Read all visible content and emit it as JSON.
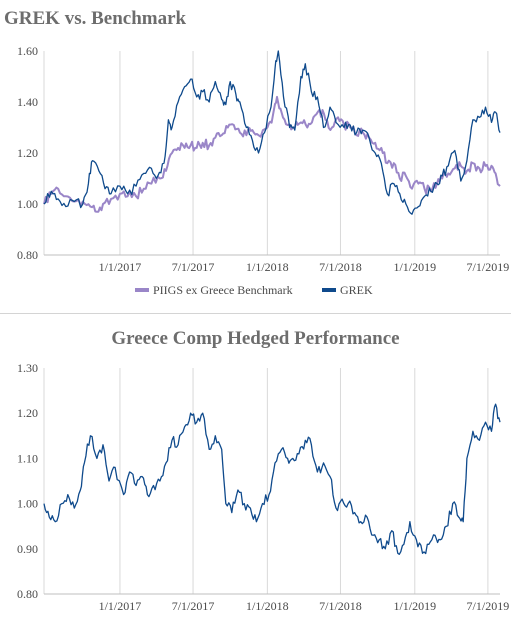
{
  "chart_data": [
    {
      "type": "line",
      "title": "GREK vs. Benchmark",
      "xlabel": "",
      "ylabel": "",
      "x_range": [
        "2016-06-27",
        "2019-07-31"
      ],
      "ylim": [
        0.8,
        1.6
      ],
      "yticks": [
        "0.80",
        "1.00",
        "1.20",
        "1.40",
        "1.60"
      ],
      "xticks": [
        {
          "date": "2017-01-01",
          "label": "1/1/2017"
        },
        {
          "date": "2017-07-01",
          "label": "7/1/2017"
        },
        {
          "date": "2018-01-01",
          "label": "1/1/2018"
        },
        {
          "date": "2018-07-01",
          "label": "7/1/2018"
        },
        {
          "date": "2019-01-01",
          "label": "1/1/2019"
        },
        {
          "date": "2019-07-01",
          "label": "7/1/2019"
        }
      ],
      "grid": "vertical",
      "legend": "bottom",
      "series": [
        {
          "name": "PIIGS ex Greece Benchmark",
          "color": "#9a86c8",
          "points": [
            [
              "2016-06-27",
              1.0
            ],
            [
              "2016-07-15",
              1.04
            ],
            [
              "2016-08-01",
              1.06
            ],
            [
              "2016-08-20",
              1.03
            ],
            [
              "2016-09-10",
              1.01
            ],
            [
              "2016-10-01",
              1.01
            ],
            [
              "2016-10-20",
              0.99
            ],
            [
              "2016-11-05",
              0.97
            ],
            [
              "2016-11-20",
              1.0
            ],
            [
              "2016-12-10",
              1.02
            ],
            [
              "2017-01-01",
              1.04
            ],
            [
              "2017-01-20",
              1.03
            ],
            [
              "2017-02-10",
              1.03
            ],
            [
              "2017-03-01",
              1.06
            ],
            [
              "2017-03-20",
              1.08
            ],
            [
              "2017-04-10",
              1.1
            ],
            [
              "2017-04-25",
              1.13
            ],
            [
              "2017-05-10",
              1.2
            ],
            [
              "2017-05-25",
              1.22
            ],
            [
              "2017-06-10",
              1.22
            ],
            [
              "2017-06-25",
              1.23
            ],
            [
              "2017-07-10",
              1.22
            ],
            [
              "2017-07-25",
              1.24
            ],
            [
              "2017-08-10",
              1.23
            ],
            [
              "2017-08-25",
              1.26
            ],
            [
              "2017-09-10",
              1.27
            ],
            [
              "2017-09-25",
              1.3
            ],
            [
              "2017-10-10",
              1.31
            ],
            [
              "2017-10-25",
              1.28
            ],
            [
              "2017-11-10",
              1.27
            ],
            [
              "2017-11-25",
              1.29
            ],
            [
              "2017-12-10",
              1.27
            ],
            [
              "2018-01-01",
              1.3
            ],
            [
              "2018-01-15",
              1.35
            ],
            [
              "2018-01-25",
              1.42
            ],
            [
              "2018-02-05",
              1.36
            ],
            [
              "2018-02-20",
              1.31
            ],
            [
              "2018-03-10",
              1.3
            ],
            [
              "2018-03-25",
              1.32
            ],
            [
              "2018-04-10",
              1.3
            ],
            [
              "2018-04-25",
              1.34
            ],
            [
              "2018-05-10",
              1.37
            ],
            [
              "2018-05-25",
              1.33
            ],
            [
              "2018-06-10",
              1.3
            ],
            [
              "2018-06-25",
              1.34
            ],
            [
              "2018-07-10",
              1.31
            ],
            [
              "2018-07-25",
              1.3
            ],
            [
              "2018-08-10",
              1.27
            ],
            [
              "2018-08-25",
              1.28
            ],
            [
              "2018-09-10",
              1.26
            ],
            [
              "2018-09-25",
              1.24
            ],
            [
              "2018-10-10",
              1.22
            ],
            [
              "2018-10-25",
              1.16
            ],
            [
              "2018-11-10",
              1.16
            ],
            [
              "2018-11-25",
              1.1
            ],
            [
              "2018-12-10",
              1.11
            ],
            [
              "2018-12-25",
              1.06
            ],
            [
              "2019-01-10",
              1.08
            ],
            [
              "2019-01-25",
              1.06
            ],
            [
              "2019-02-10",
              1.05
            ],
            [
              "2019-02-25",
              1.08
            ],
            [
              "2019-03-10",
              1.1
            ],
            [
              "2019-03-25",
              1.12
            ],
            [
              "2019-04-10",
              1.14
            ],
            [
              "2019-04-25",
              1.15
            ],
            [
              "2019-05-10",
              1.13
            ],
            [
              "2019-05-25",
              1.16
            ],
            [
              "2019-06-10",
              1.14
            ],
            [
              "2019-06-25",
              1.15
            ],
            [
              "2019-07-10",
              1.15
            ],
            [
              "2019-07-20",
              1.12
            ],
            [
              "2019-07-31",
              1.07
            ]
          ]
        },
        {
          "name": "GREK",
          "color": "#0f4a8c",
          "points": [
            [
              "2016-06-27",
              1.0
            ],
            [
              "2016-07-15",
              1.05
            ],
            [
              "2016-08-01",
              1.02
            ],
            [
              "2016-08-20",
              0.99
            ],
            [
              "2016-09-10",
              1.01
            ],
            [
              "2016-10-01",
              1.0
            ],
            [
              "2016-10-15",
              1.08
            ],
            [
              "2016-10-25",
              1.17
            ],
            [
              "2016-11-10",
              1.13
            ],
            [
              "2016-11-25",
              1.06
            ],
            [
              "2016-12-10",
              1.04
            ],
            [
              "2017-01-01",
              1.07
            ],
            [
              "2017-01-20",
              1.04
            ],
            [
              "2017-02-10",
              1.07
            ],
            [
              "2017-03-01",
              1.12
            ],
            [
              "2017-03-20",
              1.14
            ],
            [
              "2017-04-05",
              1.11
            ],
            [
              "2017-04-20",
              1.16
            ],
            [
              "2017-05-01",
              1.33
            ],
            [
              "2017-05-10",
              1.3
            ],
            [
              "2017-05-25",
              1.4
            ],
            [
              "2017-06-10",
              1.46
            ],
            [
              "2017-06-25",
              1.49
            ],
            [
              "2017-07-10",
              1.42
            ],
            [
              "2017-07-25",
              1.44
            ],
            [
              "2017-08-10",
              1.4
            ],
            [
              "2017-08-25",
              1.48
            ],
            [
              "2017-09-10",
              1.41
            ],
            [
              "2017-09-20",
              1.39
            ],
            [
              "2017-10-01",
              1.48
            ],
            [
              "2017-10-15",
              1.43
            ],
            [
              "2017-10-25",
              1.4
            ],
            [
              "2017-11-10",
              1.3
            ],
            [
              "2017-11-25",
              1.25
            ],
            [
              "2017-12-10",
              1.2
            ],
            [
              "2017-12-25",
              1.28
            ],
            [
              "2018-01-10",
              1.38
            ],
            [
              "2018-01-20",
              1.53
            ],
            [
              "2018-01-28",
              1.6
            ],
            [
              "2018-02-10",
              1.42
            ],
            [
              "2018-02-25",
              1.3
            ],
            [
              "2018-03-10",
              1.29
            ],
            [
              "2018-03-25",
              1.5
            ],
            [
              "2018-04-05",
              1.55
            ],
            [
              "2018-04-20",
              1.44
            ],
            [
              "2018-05-05",
              1.42
            ],
            [
              "2018-05-20",
              1.3
            ],
            [
              "2018-06-05",
              1.38
            ],
            [
              "2018-06-20",
              1.32
            ],
            [
              "2018-07-10",
              1.3
            ],
            [
              "2018-07-25",
              1.31
            ],
            [
              "2018-08-10",
              1.28
            ],
            [
              "2018-08-25",
              1.29
            ],
            [
              "2018-09-10",
              1.26
            ],
            [
              "2018-09-25",
              1.2
            ],
            [
              "2018-10-10",
              1.16
            ],
            [
              "2018-10-25",
              1.04
            ],
            [
              "2018-11-10",
              1.08
            ],
            [
              "2018-11-25",
              1.04
            ],
            [
              "2018-12-10",
              1.0
            ],
            [
              "2018-12-25",
              0.96
            ],
            [
              "2019-01-10",
              0.99
            ],
            [
              "2019-01-25",
              1.03
            ],
            [
              "2019-02-10",
              1.05
            ],
            [
              "2019-02-25",
              1.08
            ],
            [
              "2019-03-10",
              1.11
            ],
            [
              "2019-03-25",
              1.15
            ],
            [
              "2019-04-10",
              1.21
            ],
            [
              "2019-04-25",
              1.09
            ],
            [
              "2019-05-10",
              1.17
            ],
            [
              "2019-05-25",
              1.33
            ],
            [
              "2019-06-10",
              1.34
            ],
            [
              "2019-06-25",
              1.38
            ],
            [
              "2019-07-10",
              1.32
            ],
            [
              "2019-07-20",
              1.36
            ],
            [
              "2019-07-31",
              1.28
            ]
          ]
        }
      ]
    },
    {
      "type": "line",
      "title": "Greece Comp Hedged Performance",
      "xlabel": "",
      "ylabel": "",
      "x_range": [
        "2016-06-27",
        "2019-07-31"
      ],
      "ylim": [
        0.8,
        1.3
      ],
      "yticks": [
        "0.80",
        "0.90",
        "1.00",
        "1.10",
        "1.20",
        "1.30"
      ],
      "xticks": [
        {
          "date": "2017-01-01",
          "label": "1/1/2017"
        },
        {
          "date": "2017-07-01",
          "label": "7/1/2017"
        },
        {
          "date": "2018-01-01",
          "label": "1/1/2018"
        },
        {
          "date": "2018-07-01",
          "label": "7/1/2018"
        },
        {
          "date": "2019-01-01",
          "label": "1/1/2019"
        },
        {
          "date": "2019-07-01",
          "label": "7/1/2019"
        }
      ],
      "grid": "vertical",
      "legend": "none",
      "series": [
        {
          "color": "#0f4a8c",
          "points": [
            [
              "2016-06-27",
              1.0
            ],
            [
              "2016-07-10",
              0.97
            ],
            [
              "2016-07-25",
              0.96
            ],
            [
              "2016-08-10",
              1.0
            ],
            [
              "2016-08-25",
              1.02
            ],
            [
              "2016-09-10",
              0.99
            ],
            [
              "2016-09-25",
              1.03
            ],
            [
              "2016-10-05",
              1.09
            ],
            [
              "2016-10-20",
              1.15
            ],
            [
              "2016-11-05",
              1.1
            ],
            [
              "2016-11-20",
              1.13
            ],
            [
              "2016-12-05",
              1.05
            ],
            [
              "2016-12-20",
              1.08
            ],
            [
              "2017-01-10",
              1.02
            ],
            [
              "2017-01-25",
              1.07
            ],
            [
              "2017-02-10",
              1.04
            ],
            [
              "2017-02-25",
              1.06
            ],
            [
              "2017-03-10",
              1.02
            ],
            [
              "2017-03-25",
              1.04
            ],
            [
              "2017-04-10",
              1.05
            ],
            [
              "2017-04-25",
              1.09
            ],
            [
              "2017-05-10",
              1.14
            ],
            [
              "2017-05-25",
              1.13
            ],
            [
              "2017-06-10",
              1.17
            ],
            [
              "2017-06-25",
              1.2
            ],
            [
              "2017-07-10",
              1.18
            ],
            [
              "2017-07-25",
              1.2
            ],
            [
              "2017-08-10",
              1.12
            ],
            [
              "2017-08-25",
              1.15
            ],
            [
              "2017-09-10",
              1.12
            ],
            [
              "2017-09-20",
              1.0
            ],
            [
              "2017-10-05",
              0.98
            ],
            [
              "2017-10-20",
              1.03
            ],
            [
              "2017-11-05",
              1.0
            ],
            [
              "2017-11-20",
              0.99
            ],
            [
              "2017-12-05",
              0.96
            ],
            [
              "2017-12-20",
              1.0
            ],
            [
              "2018-01-05",
              1.02
            ],
            [
              "2018-01-20",
              1.09
            ],
            [
              "2018-02-05",
              1.12
            ],
            [
              "2018-02-20",
              1.1
            ],
            [
              "2018-03-05",
              1.1
            ],
            [
              "2018-03-20",
              1.11
            ],
            [
              "2018-04-05",
              1.14
            ],
            [
              "2018-04-20",
              1.13
            ],
            [
              "2018-05-05",
              1.07
            ],
            [
              "2018-05-20",
              1.09
            ],
            [
              "2018-06-05",
              1.06
            ],
            [
              "2018-06-20",
              0.99
            ],
            [
              "2018-07-05",
              1.01
            ],
            [
              "2018-07-20",
              1.0
            ],
            [
              "2018-08-05",
              0.98
            ],
            [
              "2018-08-20",
              0.96
            ],
            [
              "2018-09-05",
              0.97
            ],
            [
              "2018-09-20",
              0.93
            ],
            [
              "2018-10-05",
              0.92
            ],
            [
              "2018-10-20",
              0.9
            ],
            [
              "2018-11-05",
              0.94
            ],
            [
              "2018-11-20",
              0.89
            ],
            [
              "2018-12-05",
              0.91
            ],
            [
              "2018-12-20",
              0.96
            ],
            [
              "2019-01-05",
              0.92
            ],
            [
              "2019-01-20",
              0.89
            ],
            [
              "2019-02-05",
              0.91
            ],
            [
              "2019-02-20",
              0.93
            ],
            [
              "2019-03-05",
              0.92
            ],
            [
              "2019-03-20",
              0.95
            ],
            [
              "2019-04-05",
              1.0
            ],
            [
              "2019-04-20",
              0.97
            ],
            [
              "2019-05-01",
              0.96
            ],
            [
              "2019-05-10",
              1.1
            ],
            [
              "2019-05-25",
              1.16
            ],
            [
              "2019-06-10",
              1.14
            ],
            [
              "2019-06-25",
              1.18
            ],
            [
              "2019-07-10",
              1.16
            ],
            [
              "2019-07-20",
              1.22
            ],
            [
              "2019-07-31",
              1.18
            ]
          ]
        }
      ]
    }
  ]
}
